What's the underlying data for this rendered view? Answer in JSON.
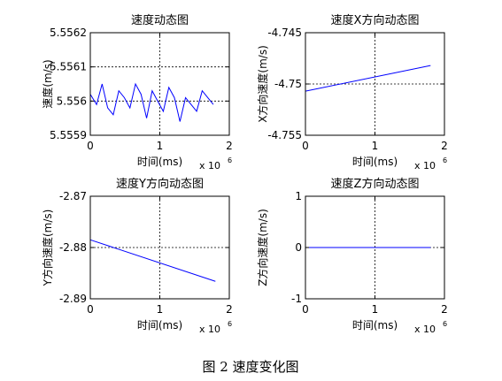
{
  "figure_caption": "图 2  速度变化图",
  "chart_data": [
    {
      "type": "line",
      "title": "速度动态图",
      "xlabel": "时间(ms)",
      "ylabel": "速度(m/s)",
      "x_exponent_base": "x 10",
      "x_exponent": "6",
      "xlim": [
        0,
        2
      ],
      "ylim": [
        5.5559,
        5.5562
      ],
      "xticks": [
        0,
        1,
        2
      ],
      "yticks": [
        5.5559,
        5.556,
        5.5561,
        5.5562
      ],
      "xtick_labels": [
        "0",
        "1",
        "2"
      ],
      "ytick_labels": [
        "5.5559",
        "5.556",
        "5.5561",
        "5.5562"
      ],
      "grid": true,
      "line_color": "#0000ff",
      "series": [
        {
          "x": [
            0,
            0.09,
            0.17,
            0.25,
            0.33,
            0.41,
            0.49,
            0.57,
            0.65,
            0.73,
            0.81,
            0.89,
            0.97,
            1.05,
            1.13,
            1.21,
            1.29,
            1.37,
            1.45,
            1.53,
            1.61,
            1.69,
            1.77
          ],
          "values": [
            5.55602,
            5.55599,
            5.55605,
            5.55598,
            5.55596,
            5.55603,
            5.55601,
            5.55598,
            5.55605,
            5.55602,
            5.55595,
            5.55603,
            5.556,
            5.55597,
            5.55604,
            5.55601,
            5.55594,
            5.55601,
            5.55599,
            5.55597,
            5.55603,
            5.55601,
            5.55599
          ]
        }
      ]
    },
    {
      "type": "line",
      "title": "速度X方向动态图",
      "xlabel": "时间(ms)",
      "ylabel": "X方向速度(m/s)",
      "x_exponent_base": "x 10",
      "x_exponent": "6",
      "xlim": [
        0,
        2
      ],
      "ylim": [
        -4.755,
        -4.745
      ],
      "xticks": [
        0,
        1,
        2
      ],
      "yticks": [
        -4.755,
        -4.75,
        -4.745
      ],
      "xtick_labels": [
        "0",
        "1",
        "2"
      ],
      "ytick_labels": [
        "-4.755",
        "-4.75",
        "-4.745"
      ],
      "grid": true,
      "line_color": "#0000ff",
      "series": [
        {
          "x": [
            0,
            1.8
          ],
          "values": [
            -4.7507,
            -4.7482
          ]
        }
      ]
    },
    {
      "type": "line",
      "title": "速度Y方向动态图",
      "xlabel": "时间(ms)",
      "ylabel": "Y方向速度(m/s)",
      "x_exponent_base": "x 10",
      "x_exponent": "6",
      "xlim": [
        0,
        2
      ],
      "ylim": [
        -2.89,
        -2.87
      ],
      "xticks": [
        0,
        1,
        2
      ],
      "yticks": [
        -2.89,
        -2.88,
        -2.87
      ],
      "xtick_labels": [
        "0",
        "1",
        "2"
      ],
      "ytick_labels": [
        "-2.89",
        "-2.88",
        "-2.87"
      ],
      "grid": true,
      "line_color": "#0000ff",
      "series": [
        {
          "x": [
            0,
            1.8
          ],
          "values": [
            -2.8785,
            -2.8866
          ]
        }
      ]
    },
    {
      "type": "line",
      "title": "速度Z方向动态图",
      "xlabel": "时间(ms)",
      "ylabel": "Z方向速度(m/s)",
      "x_exponent_base": "x 10",
      "x_exponent": "6",
      "xlim": [
        0,
        2
      ],
      "ylim": [
        -1,
        1
      ],
      "xticks": [
        0,
        1,
        2
      ],
      "yticks": [
        -1,
        0,
        1
      ],
      "xtick_labels": [
        "0",
        "1",
        "2"
      ],
      "ytick_labels": [
        "-1",
        "0",
        "1"
      ],
      "grid": true,
      "line_color": "#0000ff",
      "series": [
        {
          "x": [
            0,
            1.8
          ],
          "values": [
            0,
            0
          ]
        }
      ]
    }
  ]
}
